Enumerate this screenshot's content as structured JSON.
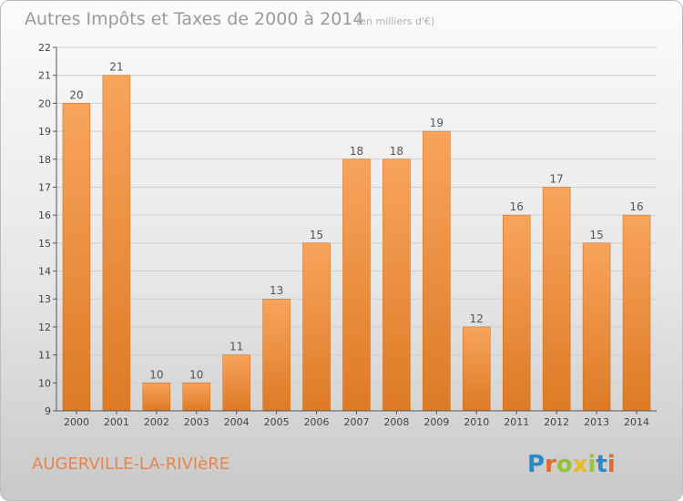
{
  "header": {
    "title": "Autres Impôts et Taxes de 2000 à 2014",
    "subtitle": "(en milliers d'€)"
  },
  "footer": {
    "commune": "AUGERVILLE-LA-RIVIèRE",
    "logo": "Proxiti"
  },
  "colors": {
    "bar_top": "#f8a45c",
    "bar_bottom": "#dd7a25",
    "bar_edge": "#c96915",
    "commune_text": "#e5844e",
    "grid": "#cfcfcf"
  },
  "chart_data": {
    "type": "bar",
    "title": "Autres Impôts et Taxes de 2000 à 2014",
    "subtitle": "(en milliers d'€)",
    "xlabel": "",
    "ylabel": "",
    "categories": [
      "2000",
      "2001",
      "2002",
      "2003",
      "2004",
      "2005",
      "2006",
      "2007",
      "2008",
      "2009",
      "2010",
      "2011",
      "2012",
      "2013",
      "2014"
    ],
    "values": [
      20,
      21,
      10,
      10,
      11,
      13,
      15,
      18,
      18,
      19,
      12,
      16,
      17,
      15,
      16
    ],
    "ylim": [
      9,
      22
    ],
    "yticks": [
      9,
      10,
      11,
      12,
      13,
      14,
      15,
      16,
      17,
      18,
      19,
      20,
      21,
      22
    ],
    "grid": true,
    "data_labels": true,
    "legend": "none"
  }
}
